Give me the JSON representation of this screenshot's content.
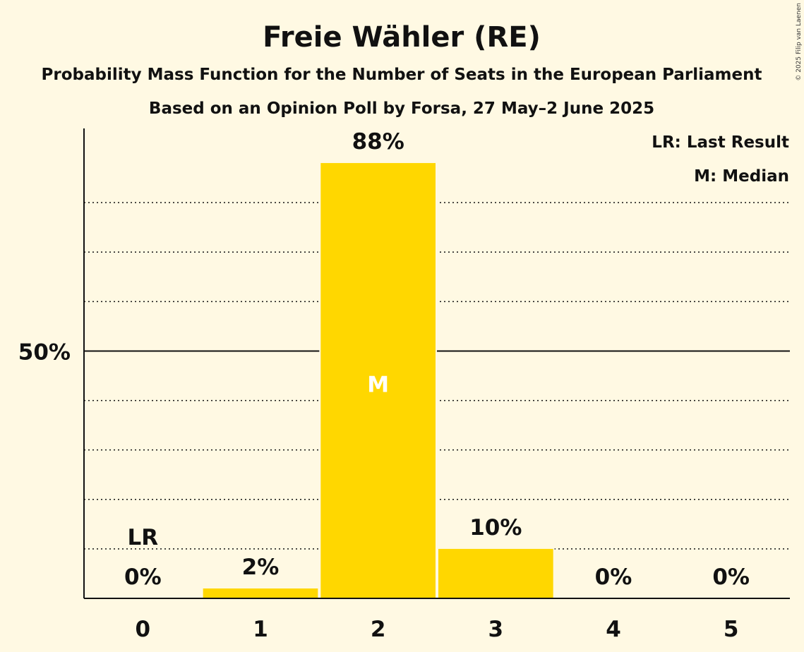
{
  "chart_data": {
    "type": "bar",
    "title": "Freie Wähler (RE)",
    "subtitle": "Probability Mass Function for the Number of Seats in the European Parliament",
    "subtitle2": "Based on an Opinion Poll by Forsa, 27 May–2 June 2025",
    "categories": [
      "0",
      "1",
      "2",
      "3",
      "4",
      "5"
    ],
    "values": [
      0,
      2,
      88,
      10,
      0,
      0
    ],
    "data_labels": [
      "0%",
      "2%",
      "88%",
      "10%",
      "0%",
      "0%"
    ],
    "ylim": [
      0,
      95
    ],
    "yticks": [
      {
        "value": 50,
        "label": "50%"
      }
    ],
    "minor_gridlines": [
      10,
      20,
      30,
      40,
      60,
      70,
      80
    ],
    "last_result_index": 0,
    "last_result_label": "LR",
    "median_index": 2,
    "median_label": "M",
    "legend": {
      "position": "top-right",
      "entries": [
        "LR: Last Result",
        "M: Median"
      ]
    },
    "bar_color": "#FFD700",
    "copyright": "© 2025 Filip van Laenen"
  }
}
